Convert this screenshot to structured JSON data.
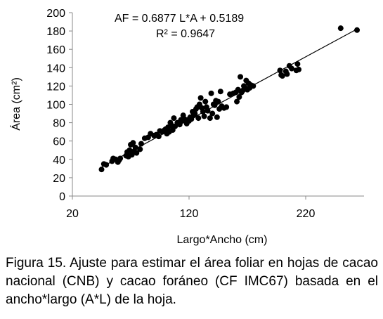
{
  "chart_data": {
    "type": "scatter",
    "title": "",
    "xlabel": "Largo*Ancho (cm)",
    "ylabel": "Área (cm²)",
    "xlim": [
      20,
      270
    ],
    "ylim": [
      0,
      200
    ],
    "xticks": [
      20,
      120,
      220
    ],
    "yticks": [
      0,
      20,
      40,
      60,
      80,
      100,
      120,
      140,
      160,
      180,
      200
    ],
    "grid": false,
    "annotations": {
      "equation": "AF = 0.6877 L*A + 0.5189",
      "r_squared": "R² = 0.9647"
    },
    "trendline": {
      "slope": 0.6877,
      "intercept": 0.5189,
      "x_range": [
        45,
        264
      ]
    },
    "series": [
      {
        "points": [
          [
            45,
            29
          ],
          [
            47,
            35
          ],
          [
            49,
            34
          ],
          [
            54,
            38
          ],
          [
            55,
            41
          ],
          [
            57,
            40
          ],
          [
            59,
            37
          ],
          [
            60,
            39
          ],
          [
            61,
            41
          ],
          [
            66,
            44
          ],
          [
            67,
            48
          ],
          [
            68,
            43
          ],
          [
            69,
            50
          ],
          [
            70,
            56
          ],
          [
            71,
            45
          ],
          [
            72,
            58
          ],
          [
            73,
            49
          ],
          [
            74,
            53
          ],
          [
            75,
            47
          ],
          [
            78,
            51
          ],
          [
            79,
            57
          ],
          [
            82,
            63
          ],
          [
            85,
            64
          ],
          [
            87,
            68
          ],
          [
            90,
            66
          ],
          [
            92,
            67
          ],
          [
            94,
            65
          ],
          [
            95,
            71
          ],
          [
            97,
            70
          ],
          [
            99,
            72
          ],
          [
            100,
            73
          ],
          [
            101,
            68
          ],
          [
            102,
            75
          ],
          [
            103,
            70
          ],
          [
            104,
            80
          ],
          [
            105,
            77
          ],
          [
            106,
            72
          ],
          [
            107,
            85
          ],
          [
            108,
            76
          ],
          [
            110,
            80
          ],
          [
            112,
            78
          ],
          [
            113,
            83
          ],
          [
            114,
            82
          ],
          [
            115,
            88
          ],
          [
            116,
            84
          ],
          [
            118,
            79
          ],
          [
            119,
            83
          ],
          [
            120,
            82
          ],
          [
            121,
            86
          ],
          [
            122,
            84
          ],
          [
            123,
            92
          ],
          [
            124,
            88
          ],
          [
            125,
            90
          ],
          [
            126,
            95
          ],
          [
            127,
            97
          ],
          [
            128,
            85
          ],
          [
            129,
            100
          ],
          [
            130,
            107
          ],
          [
            131,
            96
          ],
          [
            132,
            92
          ],
          [
            133,
            87
          ],
          [
            134,
            103
          ],
          [
            135,
            97
          ],
          [
            136,
            93
          ],
          [
            138,
            85
          ],
          [
            139,
            112
          ],
          [
            140,
            90
          ],
          [
            141,
            100
          ],
          [
            142,
            99
          ],
          [
            143,
            104
          ],
          [
            144,
            86
          ],
          [
            145,
            103
          ],
          [
            146,
            95
          ],
          [
            147,
            114
          ],
          [
            148,
            98
          ],
          [
            150,
            96
          ],
          [
            152,
            97
          ],
          [
            155,
            111
          ],
          [
            158,
            112
          ],
          [
            160,
            113
          ],
          [
            161,
            103
          ],
          [
            162,
            116
          ],
          [
            163,
            108
          ],
          [
            164,
            130
          ],
          [
            165,
            113
          ],
          [
            166,
            115
          ],
          [
            167,
            120
          ],
          [
            168,
            118
          ],
          [
            169,
            126
          ],
          [
            170,
            116
          ],
          [
            171,
            123
          ],
          [
            172,
            118
          ],
          [
            173,
            121
          ],
          [
            175,
            120
          ],
          [
            198,
            137
          ],
          [
            199,
            132
          ],
          [
            200,
            131
          ],
          [
            203,
            136
          ],
          [
            204,
            133
          ],
          [
            206,
            142
          ],
          [
            208,
            139
          ],
          [
            212,
            137
          ],
          [
            213,
            144
          ],
          [
            214,
            138
          ],
          [
            250,
            183
          ],
          [
            264,
            181
          ]
        ]
      }
    ]
  },
  "caption": "Figura 15. Ajuste para estimar el área foliar en hojas de cacao nacional (CNB) y cacao foráneo (CF IMC67) basada en el ancho*largo (A*L) de la hoja."
}
